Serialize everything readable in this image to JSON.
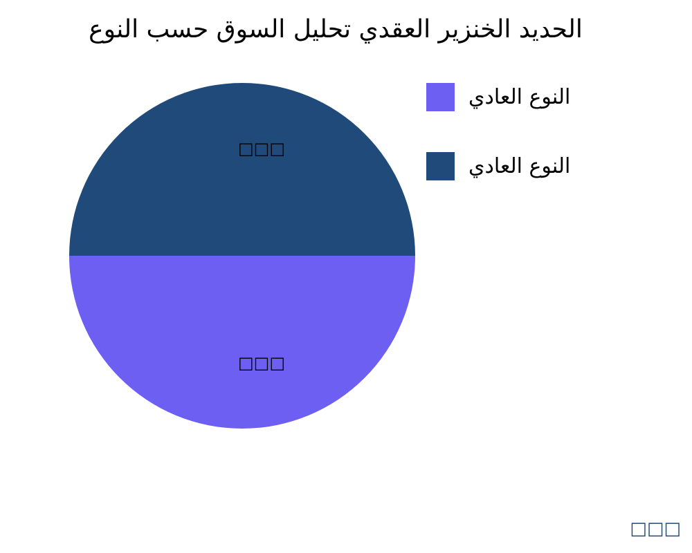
{
  "chart_data": {
    "type": "pie",
    "title": "الحديد الخنزير العقدي تحليل السوق حسب النوع",
    "slices": [
      {
        "label": "النوع العادي",
        "value": 50,
        "data_label": "□□□",
        "color": "#6c5ff2"
      },
      {
        "label": "النوع العادي",
        "value": 50,
        "data_label": "□□□",
        "color": "#1f4a7a"
      }
    ],
    "legend_placement": "top-right"
  },
  "watermark": "□□□"
}
